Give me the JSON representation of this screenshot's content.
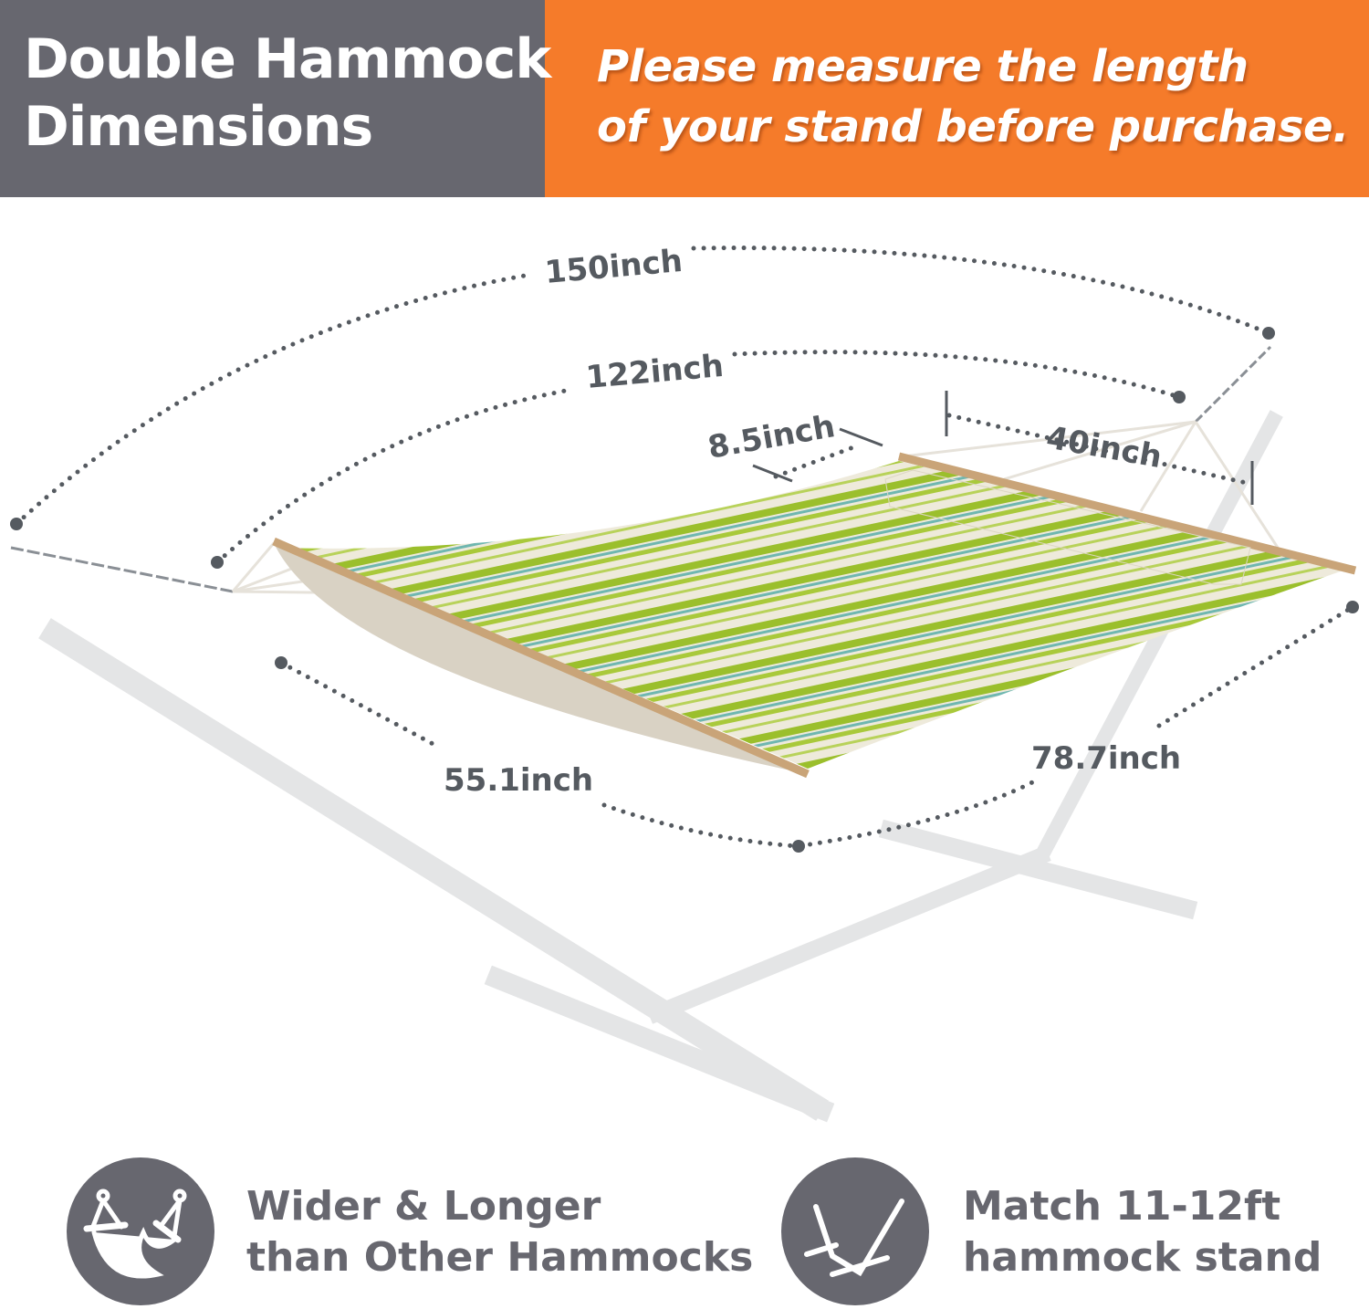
{
  "header": {
    "title_line1": "Double Hammock",
    "title_line2": "Dimensions",
    "note_line1": "Please measure the length",
    "note_line2": "of your stand before purchase.",
    "colors": {
      "gray": "#67676f",
      "orange": "#f57b2a"
    }
  },
  "dimensions": {
    "total_length": "150inch",
    "bed_length": "122inch",
    "pillow_width": "8.5inch",
    "pillow_length": "40inch",
    "bed_width": "55.1inch",
    "spreader_width": "78.7inch"
  },
  "features": [
    {
      "icon": "hammock-icon",
      "line1": "Wider & Longer",
      "line2": "than Other Hammocks"
    },
    {
      "icon": "stand-icon",
      "line1": "Match 11-12ft",
      "line2": "hammock stand"
    }
  ]
}
